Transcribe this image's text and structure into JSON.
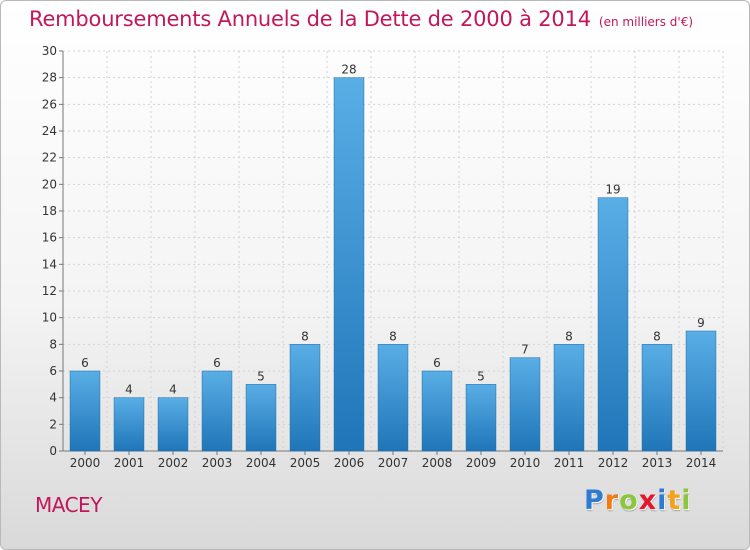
{
  "header": {
    "title": "Remboursements Annuels de la Dette de 2000 à 2014",
    "unit": "(en milliers d'€)"
  },
  "footer": {
    "place": "MACEY",
    "logo_letters": [
      "P",
      "r",
      "o",
      "x",
      "i",
      "t",
      "i"
    ],
    "logo_colors": [
      "#2e7bd1",
      "#f07c12",
      "#8cc63f",
      "#e3182d",
      "#2e7bd1",
      "#f6a11a",
      "#8cc63f"
    ]
  },
  "colors": {
    "bar_top": "#5aaee6",
    "bar_bottom": "#1f75b8",
    "accent": "#c2185b"
  },
  "chart_data": {
    "type": "bar",
    "title": "Remboursements Annuels de la Dette de 2000 à 2014",
    "xlabel": "",
    "ylabel": "",
    "categories": [
      "2000",
      "2001",
      "2002",
      "2003",
      "2004",
      "2005",
      "2006",
      "2007",
      "2008",
      "2009",
      "2010",
      "2011",
      "2012",
      "2013",
      "2014"
    ],
    "values": [
      6,
      4,
      4,
      6,
      5,
      8,
      28,
      8,
      6,
      5,
      7,
      8,
      19,
      8,
      9
    ],
    "ylim": [
      0,
      30
    ],
    "yticks": [
      0,
      2,
      4,
      6,
      8,
      10,
      12,
      14,
      16,
      18,
      20,
      22,
      24,
      26,
      28,
      30
    ],
    "grid": true,
    "legend": "none"
  }
}
